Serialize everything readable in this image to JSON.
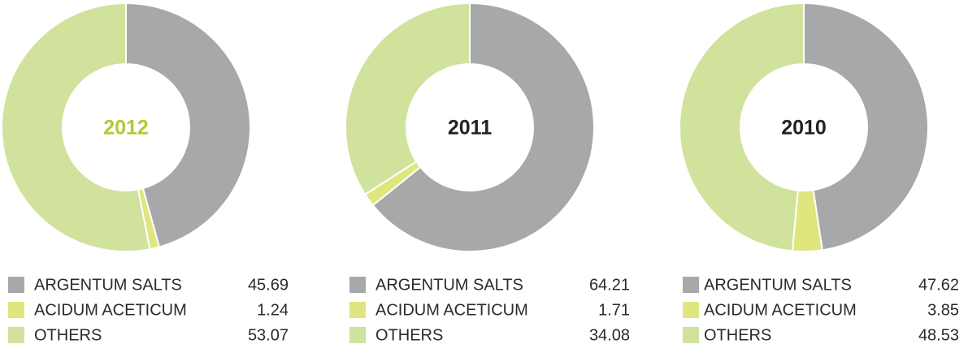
{
  "chart_data": [
    {
      "type": "pie",
      "title": "2012",
      "title_color": "#b3c934",
      "categories": [
        "ARGENTUM SALTS",
        "ACIDUM ACETICUM",
        "OTHERS"
      ],
      "values": [
        45.69,
        1.24,
        53.07
      ],
      "colors": [
        "#a7a8aa",
        "#dfe67e",
        "#d0e29c"
      ]
    },
    {
      "type": "pie",
      "title": "2011",
      "title_color": "#222222",
      "categories": [
        "ARGENTUM SALTS",
        "ACIDUM ACETICUM",
        "OTHERS"
      ],
      "values": [
        64.21,
        1.71,
        34.08
      ],
      "colors": [
        "#a7a8aa",
        "#dfe67e",
        "#d0e29c"
      ]
    },
    {
      "type": "pie",
      "title": "2010",
      "title_color": "#222222",
      "categories": [
        "ARGENTUM SALTS",
        "ACIDUM ACETICUM",
        "OTHERS"
      ],
      "values": [
        47.62,
        3.85,
        48.53
      ],
      "colors": [
        "#a7a8aa",
        "#dfe67e",
        "#d0e29c"
      ]
    }
  ]
}
